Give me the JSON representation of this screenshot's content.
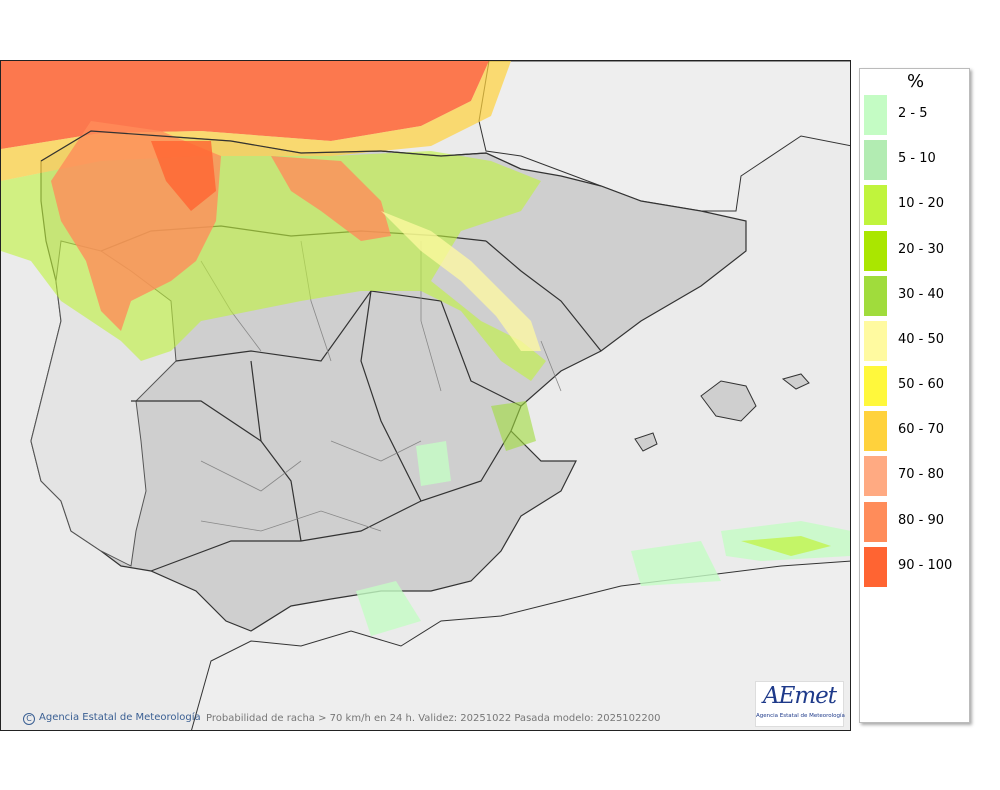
{
  "legend": {
    "unit": "%",
    "classes": [
      {
        "label": "2 - 5",
        "color": "#c4fcc4"
      },
      {
        "label": "5 - 10",
        "color": "#b2ecb2"
      },
      {
        "label": "10 - 20",
        "color": "#c0f43c"
      },
      {
        "label": "20 - 30",
        "color": "#aae600"
      },
      {
        "label": "30 - 40",
        "color": "#a0dc3c"
      },
      {
        "label": "40 - 50",
        "color": "#fffaa0"
      },
      {
        "label": "50 - 60",
        "color": "#fff83c"
      },
      {
        "label": "60 - 70",
        "color": "#ffd23c"
      },
      {
        "label": "70 - 80",
        "color": "#ffaa82"
      },
      {
        "label": "80 - 90",
        "color": "#ff8c5a"
      },
      {
        "label": "90 - 100",
        "color": "#ff6432"
      }
    ]
  },
  "credit": {
    "icon": "copyright-icon",
    "text": "Agencia Estatal de Meteorología"
  },
  "caption": "Probabilidad de racha > 70 km/h en 24 h. Validez: 20251022 Pasada modelo: 2025102200",
  "logo": {
    "word_a": "AE",
    "word_b": "met",
    "subtitle": "Agencia Estatal de Meteorología"
  },
  "colors": {
    "sea": "#ebebeb",
    "land": "#cfcfcf",
    "border": "#222222"
  }
}
